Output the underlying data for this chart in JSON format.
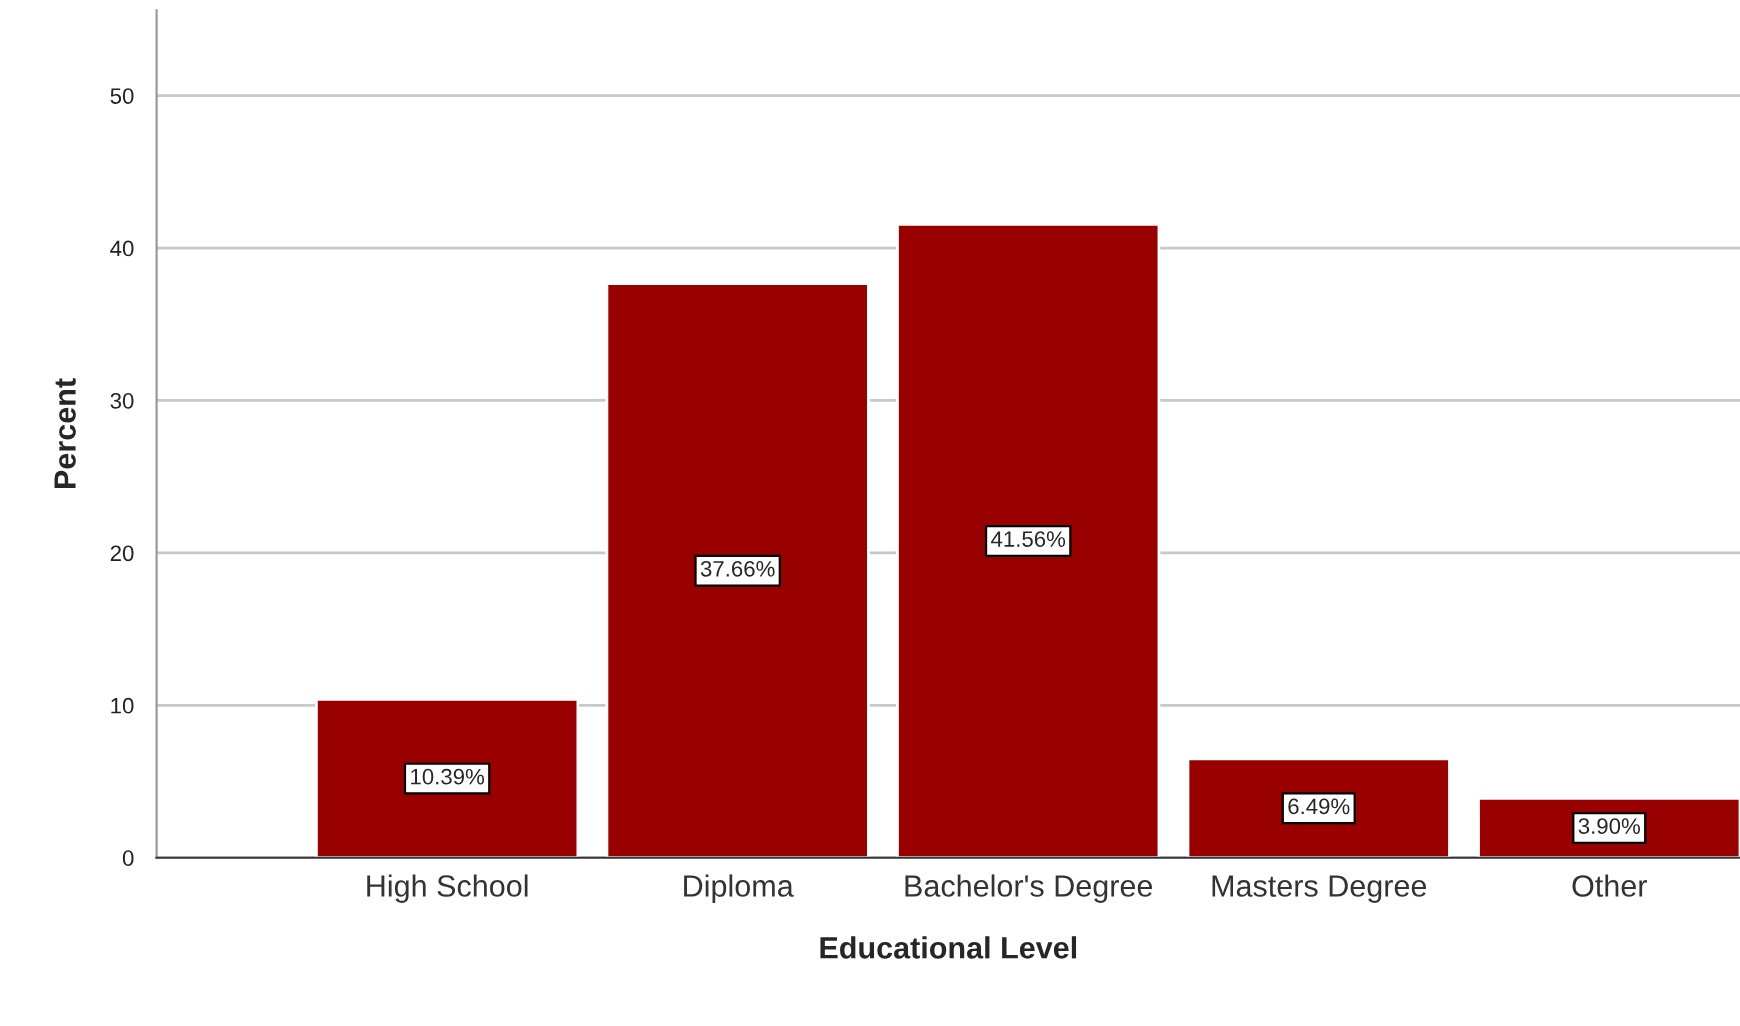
{
  "chart_data": {
    "type": "bar",
    "xlabel": "Educational Level",
    "ylabel": "Percent",
    "categories": [
      "High School",
      "Diploma",
      "Bachelor's Degree",
      "Masters Degree",
      "Other"
    ],
    "values": [
      10.39,
      37.66,
      41.56,
      6.49,
      3.9
    ],
    "value_labels": [
      "10.39%",
      "37.66%",
      "41.56%",
      "6.49%",
      "3.90%"
    ],
    "color": "#990000",
    "ylim": [
      0,
      55.6
    ],
    "yticks": [
      0,
      10,
      20,
      30,
      40,
      50
    ],
    "grid": "y"
  }
}
